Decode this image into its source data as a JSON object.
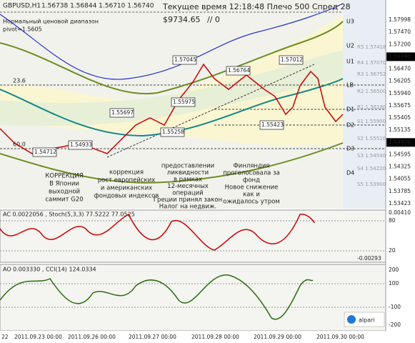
{
  "header": {
    "symbol": "GBPUSD,H1",
    "ohlc": "1.56738 1.56844 1.56710 1.56740",
    "status": "Текущее время 12:18:48 Плечо 500 Спред 28",
    "balance": "$9734.65",
    "extra": "// 0",
    "range_note": "Нормальный ценовой диапазон",
    "pivot": "pivot=1.5605"
  },
  "level_labels": [
    "U3",
    "U2",
    "U1",
    "LB",
    "D1",
    "D2",
    "D3",
    "D4"
  ],
  "pivot_labels": [
    "R5 1.57418",
    "R4 1.57070",
    "R3 1.56752",
    "R2 1.56500",
    "R1 1.56180",
    "S1 1.55900",
    "S2 1.55510",
    "S3 1.54540",
    "S4 1.54220",
    "S5 1.53900"
  ],
  "price_boxes": [
    "1.57045",
    "1.56764",
    "1.57012",
    "1.55697",
    "1.55975",
    "1.55258",
    "1.55423",
    "1.54933",
    "1.54712"
  ],
  "fib_labels": [
    "23.6",
    "60.0"
  ],
  "price_axis": [
    "1.57998",
    "1.57470",
    "1.57200",
    "1.56740",
    "1.56470",
    "1.56205",
    "1.55940",
    "1.55675",
    "1.55405",
    "1.55135",
    "1.54808",
    "1.54595",
    "1.54325",
    "1.54055",
    "1.53785",
    "1.53423"
  ],
  "annotations": [
    {
      "color": "#e00000",
      "lines": [
        "КОРРЕКЦИЯ",
        "В Японии",
        "выходной",
        "саммит G20"
      ]
    },
    {
      "color": "#111111",
      "lines": [
        "коррекция",
        "рост европейских",
        "и американских",
        "фондовых индексов"
      ]
    },
    {
      "color": "#111111",
      "lines": [
        "предоставлении",
        "ликвидности",
        "в рамках",
        "12-месячных",
        "операций",
        "Греции принял закон",
        "Налог на недвиж."
      ]
    },
    {
      "color": "#111111",
      "lines": [
        "Финляндия",
        "проголосовала за",
        "фонд"
      ]
    },
    {
      "color": "#e00000",
      "lines": [
        "Новое снижение",
        "как и",
        "ожидалось утром"
      ]
    }
  ],
  "ac_panel": {
    "title": "AC 0.0022056 , Stoch(5,3,3) 77.5222 77.0525",
    "axis": [
      "0.00410",
      "80",
      "20",
      "-0.00293"
    ]
  },
  "ao_panel": {
    "title": "AO 0.003330 , CCI(14) 124.0334",
    "axis": [
      "200",
      "100",
      "-100",
      "-200"
    ]
  },
  "time_axis": [
    "22",
    "2011.09.23 00:00",
    "2011.09.26 00:00",
    "2011.09.27 00:00",
    "2011.09.28 00:00",
    "2011.09.29 00:00",
    "2011.09.30 00:00"
  ],
  "brand": "alpari"
}
